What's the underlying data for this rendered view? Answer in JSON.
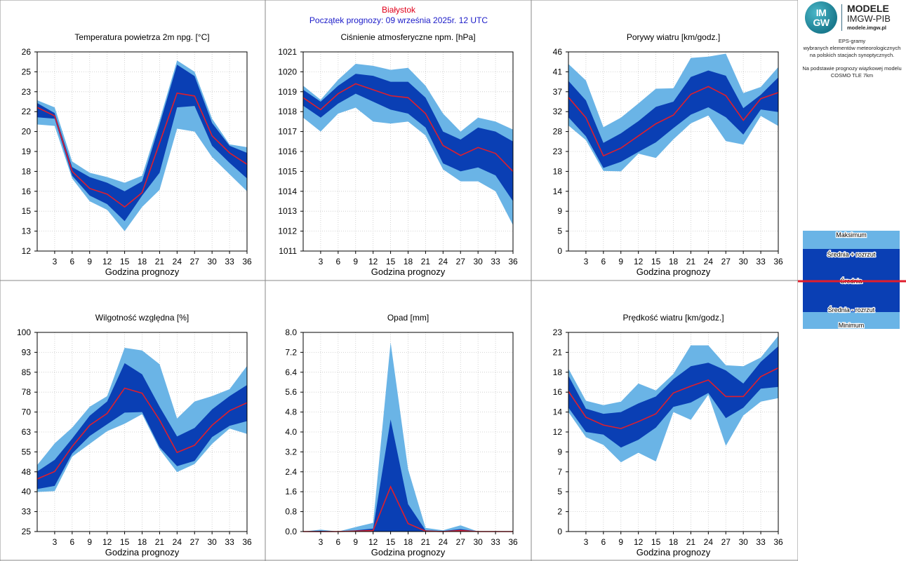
{
  "header": {
    "city": "Białystok",
    "start": "Początek prognozy: 09 września 2025r. 12 UTC"
  },
  "logo": {
    "img_line1": "IM",
    "img_line2": "GW",
    "modele": "MODELE",
    "imgw": "IMGW-PIB",
    "url": "modele.imgw.pl"
  },
  "side": {
    "line1": "EPS-gramy",
    "line2": "wybranych elementów meteorologicznych",
    "line3": "na polskich stacjach  synoptycznych.",
    "line4": "Na podstawie prognozy wiązkowej modelu",
    "line5": "COSMO TLE 7km"
  },
  "legend": {
    "max": "Maksimum",
    "plus": "Średnia + rozrzut",
    "mean": "Średnia",
    "minus": "Średnia - rozrzut",
    "min": "Minimum"
  },
  "colors": {
    "outer": "#6ab4e6",
    "inner": "#0a3fb4",
    "mean": "#e01e2c",
    "grid": "#c8c8c8"
  },
  "chart_data": [
    {
      "type": "area",
      "title": "Temperatura powietrza 2m npg. [°C]",
      "xlabel": "Godzina prognozy",
      "ylim": [
        12,
        26
      ],
      "yticks": [
        "12",
        "13",
        "15",
        "16",
        "18",
        "19",
        "20",
        "22",
        "23",
        "25",
        "26"
      ],
      "x": [
        0,
        3,
        6,
        9,
        12,
        15,
        18,
        21,
        24,
        27,
        30,
        33,
        36
      ],
      "xticks": [
        "3",
        "6",
        "9",
        "12",
        "15",
        "18",
        "21",
        "24",
        "27",
        "30",
        "33",
        "36"
      ],
      "max": [
        22.6,
        22.1,
        18.3,
        17.5,
        17.2,
        16.8,
        17.3,
        21.2,
        25.4,
        24.6,
        21.3,
        19.5,
        19.3
      ],
      "plus": [
        22.4,
        21.7,
        17.9,
        17.2,
        16.8,
        16.2,
        16.9,
        20.9,
        25.1,
        24.3,
        21.0,
        19.4,
        18.9
      ],
      "mean": [
        22.1,
        21.5,
        17.6,
        16.4,
        16.0,
        15.1,
        16.1,
        19.6,
        23.1,
        22.9,
        20.1,
        18.9,
        18.1
      ],
      "minus": [
        21.4,
        21.3,
        17.3,
        15.9,
        15.3,
        14.1,
        15.9,
        17.5,
        22.1,
        22.2,
        19.4,
        18.2,
        17.1
      ],
      "min": [
        20.9,
        20.8,
        17.1,
        15.5,
        14.9,
        13.4,
        15.1,
        16.3,
        20.6,
        20.4,
        18.6,
        17.4,
        16.2
      ]
    },
    {
      "type": "area",
      "title": "Ciśnienie atmosferyczne npm. [hPa]",
      "xlabel": "Godzina prognozy",
      "ylim": [
        1011,
        1021
      ],
      "yticks": [
        "1011",
        "1012",
        "1013",
        "1014",
        "1015",
        "1016",
        "1017",
        "1018",
        "1019",
        "1020",
        "1021"
      ],
      "x": [
        0,
        3,
        6,
        9,
        12,
        15,
        18,
        21,
        24,
        27,
        30,
        33,
        36
      ],
      "xticks": [
        "3",
        "6",
        "9",
        "12",
        "15",
        "18",
        "21",
        "24",
        "27",
        "30",
        "33",
        "36"
      ],
      "max": [
        1019.3,
        1018.6,
        1019.6,
        1020.4,
        1020.3,
        1020.1,
        1020.2,
        1019.3,
        1017.9,
        1017.0,
        1017.7,
        1017.5,
        1017.1
      ],
      "plus": [
        1019.1,
        1018.5,
        1019.3,
        1019.9,
        1019.8,
        1019.5,
        1019.5,
        1018.7,
        1017.0,
        1016.6,
        1017.2,
        1017.0,
        1016.5
      ],
      "mean": [
        1018.7,
        1018.1,
        1018.9,
        1019.4,
        1019.1,
        1018.8,
        1018.7,
        1017.9,
        1016.3,
        1015.8,
        1016.2,
        1015.9,
        1015.0
      ],
      "minus": [
        1018.3,
        1017.7,
        1018.4,
        1018.9,
        1018.5,
        1018.1,
        1017.9,
        1017.2,
        1015.4,
        1015.0,
        1015.2,
        1014.8,
        1013.5
      ],
      "min": [
        1017.7,
        1017.0,
        1017.9,
        1018.2,
        1017.5,
        1017.4,
        1017.5,
        1016.8,
        1015.1,
        1014.5,
        1014.5,
        1014.0,
        1012.3
      ]
    },
    {
      "type": "area",
      "title": "Porywy wiatru [km/godz.]",
      "xlabel": "Godzina prognozy",
      "ylim": [
        0,
        46
      ],
      "yticks": [
        "0",
        "5",
        "9",
        "14",
        "18",
        "23",
        "28",
        "32",
        "37",
        "41",
        "46"
      ],
      "x": [
        0,
        3,
        6,
        9,
        12,
        15,
        18,
        21,
        24,
        27,
        30,
        33,
        36
      ],
      "xticks": [
        "3",
        "6",
        "9",
        "12",
        "15",
        "18",
        "21",
        "24",
        "27",
        "30",
        "33",
        "36"
      ],
      "max": [
        43.2,
        39.4,
        28.6,
        30.8,
        34.1,
        37.5,
        37.6,
        44.6,
        44.9,
        45.6,
        36.5,
        37.9,
        42.5
      ],
      "plus": [
        39.3,
        34.8,
        25.0,
        27.2,
        30.0,
        33.3,
        34.5,
        40.2,
        41.7,
        40.5,
        33.0,
        36.1,
        40.1
      ],
      "mean": [
        35.5,
        30.8,
        22.0,
        23.8,
        26.6,
        29.4,
        31.4,
        36.2,
        38.0,
        35.9,
        30.2,
        35.2,
        36.6
      ],
      "minus": [
        30.9,
        26.5,
        19.2,
        20.6,
        22.9,
        25.1,
        28.4,
        31.5,
        33.2,
        30.9,
        26.9,
        32.7,
        32.1
      ],
      "min": [
        29.0,
        25.6,
        18.5,
        18.4,
        22.5,
        21.5,
        25.8,
        29.5,
        31.3,
        25.4,
        24.6,
        31.2,
        28.9
      ]
    },
    {
      "type": "area",
      "title": "Wilgotność względna [%]",
      "xlabel": "Godzina prognozy",
      "ylim": [
        25,
        100
      ],
      "yticks": [
        "25",
        "33",
        "40",
        "48",
        "55",
        "63",
        "70",
        "78",
        "85",
        "93",
        "100"
      ],
      "x": [
        0,
        3,
        6,
        9,
        12,
        15,
        18,
        21,
        24,
        27,
        30,
        33,
        36
      ],
      "xticks": [
        "3",
        "6",
        "9",
        "12",
        "15",
        "18",
        "21",
        "24",
        "27",
        "30",
        "33",
        "36"
      ],
      "max": [
        50.0,
        58.2,
        64.1,
        72.0,
        76.0,
        94.2,
        93.2,
        88.0,
        67.6,
        74.0,
        76.0,
        78.6,
        87.4
      ],
      "plus": [
        47.6,
        52.0,
        60.0,
        68.6,
        74.0,
        88.4,
        84.2,
        72.0,
        60.8,
        64.0,
        71.0,
        76.0,
        80.2
      ],
      "mean": [
        44.8,
        47.6,
        57.0,
        65.0,
        69.5,
        79.0,
        77.1,
        67.0,
        54.8,
        57.5,
        65.0,
        70.5,
        73.5
      ],
      "minus": [
        41.0,
        42.2,
        54.4,
        61.0,
        65.4,
        69.8,
        70.0,
        56.8,
        49.6,
        51.6,
        60.6,
        64.8,
        66.6
      ],
      "min": [
        39.9,
        40.2,
        53.2,
        58.0,
        62.8,
        65.6,
        69.2,
        56.0,
        47.4,
        50.4,
        58.0,
        63.8,
        61.8
      ]
    },
    {
      "type": "area",
      "title": "Opad [mm]",
      "xlabel": "Godzina prognozy",
      "ylim": [
        0,
        8
      ],
      "yticks": [
        "0.0",
        "0.8",
        "1.6",
        "2.4",
        "3.2",
        "4.0",
        "4.8",
        "5.6",
        "6.4",
        "7.2",
        "8.0"
      ],
      "x": [
        0,
        3,
        6,
        9,
        12,
        15,
        18,
        21,
        24,
        27,
        30,
        33,
        36
      ],
      "xticks": [
        "3",
        "6",
        "9",
        "12",
        "15",
        "18",
        "21",
        "24",
        "27",
        "30",
        "33",
        "36"
      ],
      "max": [
        0.0,
        0.08,
        0.0,
        0.18,
        0.35,
        7.6,
        2.5,
        0.15,
        0.05,
        0.25,
        0.0,
        0.0,
        0.0
      ],
      "plus": [
        0.0,
        0.03,
        0.0,
        0.05,
        0.12,
        4.5,
        1.1,
        0.05,
        0.02,
        0.1,
        0.0,
        0.0,
        0.0
      ],
      "mean": [
        0.0,
        0.0,
        0.0,
        0.02,
        0.04,
        1.8,
        0.32,
        0.02,
        0.0,
        0.04,
        0.0,
        0.0,
        0.0
      ],
      "minus": [
        0.0,
        0.0,
        0.0,
        0.0,
        0.0,
        0.0,
        0.0,
        0.0,
        0.0,
        0.0,
        0.0,
        0.0,
        0.0
      ],
      "min": [
        0.0,
        0.0,
        0.0,
        0.0,
        0.0,
        0.0,
        0.0,
        0.0,
        0.0,
        0.0,
        0.0,
        0.0,
        0.0
      ]
    },
    {
      "type": "area",
      "title": "Prędkość wiatru [km/godz.]",
      "xlabel": "Godzina prognozy",
      "ylim": [
        0,
        23
      ],
      "yticks": [
        "0",
        "2",
        "5",
        "7",
        "9",
        "12",
        "14",
        "16",
        "18",
        "21",
        "23"
      ],
      "x": [
        0,
        3,
        6,
        9,
        12,
        15,
        18,
        21,
        24,
        27,
        30,
        33,
        36
      ],
      "xticks": [
        "3",
        "6",
        "9",
        "12",
        "15",
        "18",
        "21",
        "24",
        "27",
        "30",
        "33",
        "36"
      ],
      "max": [
        18.8,
        15.1,
        14.6,
        15.0,
        17.1,
        16.3,
        18.2,
        21.5,
        21.5,
        19.2,
        19.1,
        20.1,
        22.6
      ],
      "plus": [
        18.0,
        14.2,
        13.6,
        13.8,
        14.8,
        15.6,
        17.6,
        19.1,
        19.5,
        18.6,
        17.1,
        19.6,
        21.4
      ],
      "mean": [
        16.2,
        13.2,
        12.3,
        11.9,
        12.7,
        13.6,
        16.0,
        16.8,
        17.5,
        15.6,
        15.6,
        17.9,
        18.9
      ],
      "minus": [
        14.3,
        11.5,
        11.2,
        9.7,
        10.6,
        12.0,
        14.4,
        14.9,
        16.0,
        13.1,
        14.3,
        16.5,
        16.7
      ],
      "min": [
        13.8,
        10.9,
        10.0,
        8.0,
        9.1,
        8.1,
        13.8,
        12.9,
        15.8,
        9.9,
        13.4,
        15.0,
        15.4
      ]
    }
  ]
}
